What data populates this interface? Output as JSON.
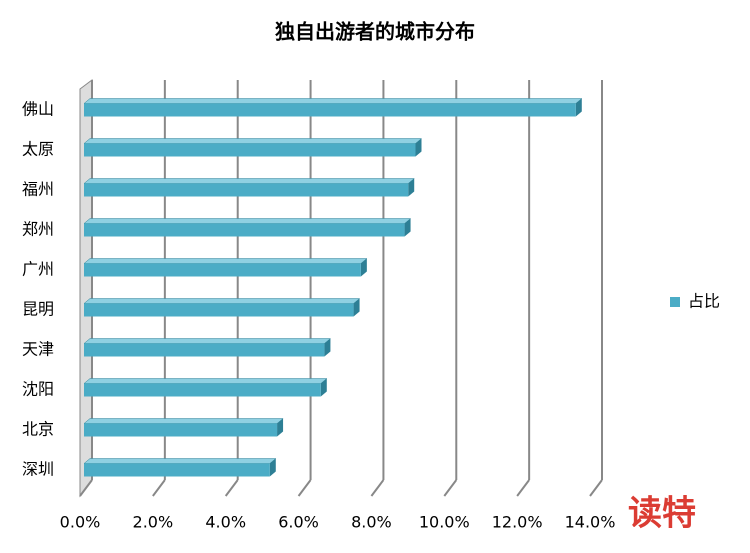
{
  "chart_data": {
    "type": "bar3d",
    "orientation": "horizontal",
    "title": "独自出游者的城市分布",
    "categories": [
      "佛山",
      "太原",
      "福州",
      "郑州",
      "广州",
      "昆明",
      "天津",
      "沈阳",
      "北京",
      "深圳"
    ],
    "series": [
      {
        "name": "占比",
        "color": "#4bacc6",
        "values": [
          13.5,
          9.1,
          8.9,
          8.8,
          7.6,
          7.4,
          6.6,
          6.5,
          5.3,
          5.1
        ]
      }
    ],
    "xlim": [
      0,
      14
    ],
    "xticks": [
      {
        "value": 0,
        "label": "0.0%"
      },
      {
        "value": 2,
        "label": "2.0%"
      },
      {
        "value": 4,
        "label": "4.0%"
      },
      {
        "value": 6,
        "label": "6.0%"
      },
      {
        "value": 8,
        "label": "8.0%"
      },
      {
        "value": 10,
        "label": "10.0%"
      },
      {
        "value": 12,
        "label": "12.0%"
      },
      {
        "value": 14,
        "label": "14.0%"
      }
    ],
    "grid": true,
    "legend": "right",
    "watermark": "读特"
  }
}
